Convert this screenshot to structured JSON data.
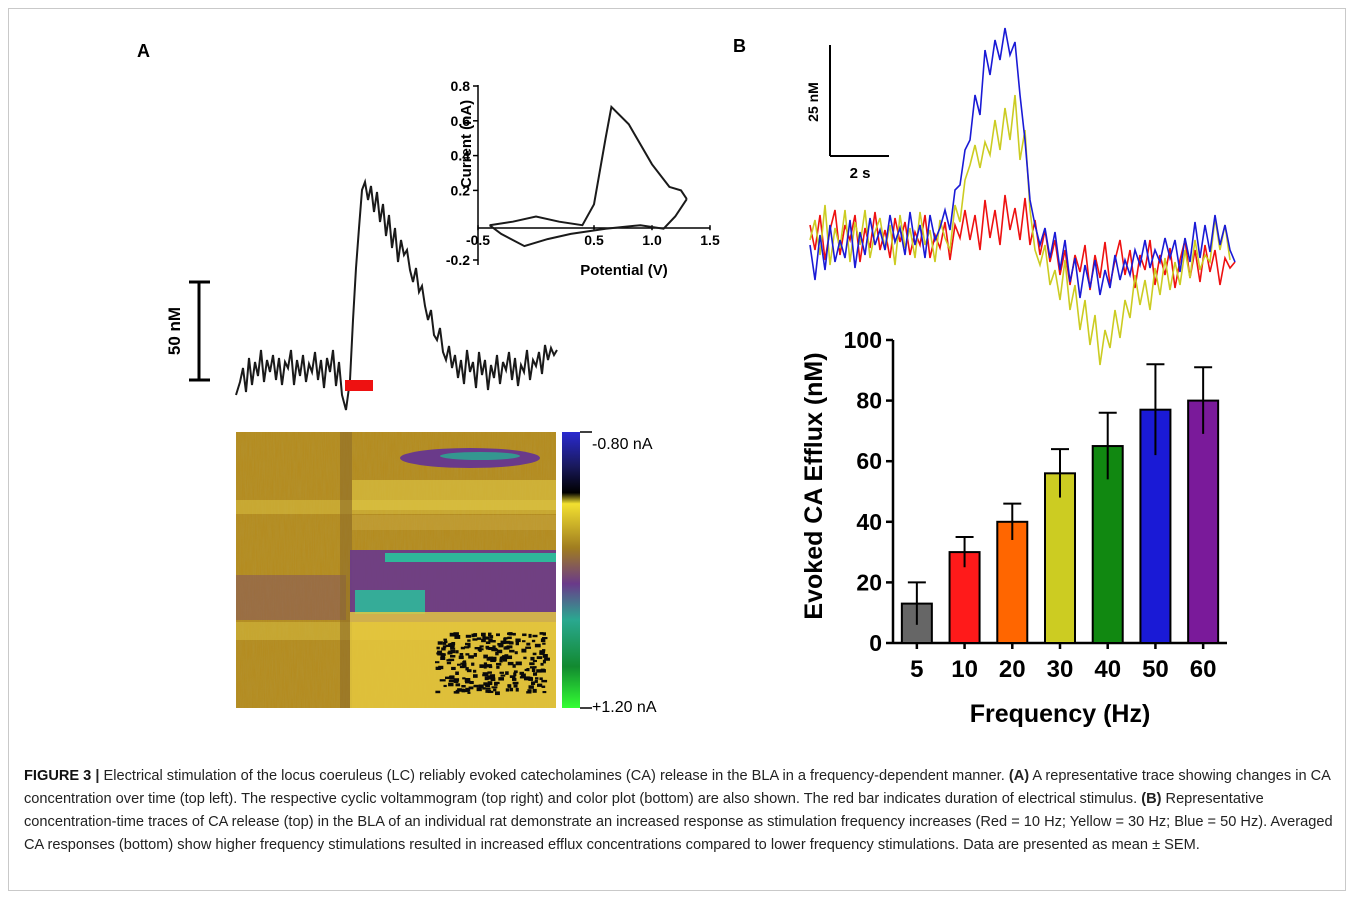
{
  "figure": {
    "panel_a_label": "A",
    "panel_b_label": "B",
    "scale_a_label": "50 nM",
    "scale_b_vertical_label": "25 nM",
    "scale_b_horizontal_label": "2 s",
    "colorbar_top_label": "-0.80 nA",
    "colorbar_bottom_label": "+1.20 nA"
  },
  "caption": {
    "figure_label": "FIGURE 3",
    "separator": "|",
    "text_1": "Electrical stimulation of the locus coeruleus (LC) reliably evoked catecholamines (CA) release in the BLA in a frequency-dependent manner.",
    "panel_a_ref": "(A)",
    "text_2": "A representative trace showing changes in CA concentration over time (top left). The respective cyclic voltammogram (top right) and color plot (bottom) are also shown. The red bar indicates duration of electrical stimulus.",
    "panel_b_ref": "(B)",
    "text_3": "Representative concentration-time traces of CA release (top) in the BLA of an individual rat demonstrate an increased response as stimulation frequency increases (Red = 10 Hz; Yellow = 30 Hz; Blue = 50 Hz). Averaged CA responses (bottom) show higher frequency stimulations resulted in increased efflux concentrations compared to lower frequency stimulations. Data are presented as mean ± SEM."
  },
  "chart_data": [
    {
      "type": "line",
      "name": "cyclic voltammogram inset",
      "xlabel": "Potential (V)",
      "ylabel": "Current (nA)",
      "xlim": [
        -0.5,
        1.5
      ],
      "ylim": [
        -0.2,
        0.8
      ],
      "xticks": [
        "-0.5",
        "0.5",
        "1.0",
        "1.5"
      ],
      "yticks": [
        "-0.2",
        "0.2",
        "0.4",
        "0.6",
        "0.8"
      ],
      "forward_sweep": [
        [
          -0.4,
          0.0
        ],
        [
          -0.2,
          0.02
        ],
        [
          0.0,
          0.05
        ],
        [
          0.2,
          0.02
        ],
        [
          0.4,
          0.0
        ],
        [
          0.5,
          0.12
        ],
        [
          0.6,
          0.5
        ],
        [
          0.65,
          0.68
        ],
        [
          0.8,
          0.58
        ],
        [
          1.0,
          0.35
        ],
        [
          1.15,
          0.22
        ],
        [
          1.25,
          0.2
        ],
        [
          1.3,
          0.15
        ]
      ],
      "reverse_sweep": [
        [
          1.3,
          0.15
        ],
        [
          1.2,
          0.05
        ],
        [
          1.1,
          -0.02
        ],
        [
          0.9,
          0.0
        ],
        [
          0.6,
          -0.02
        ],
        [
          0.3,
          -0.05
        ],
        [
          0.1,
          -0.08
        ],
        [
          -0.1,
          -0.12
        ],
        [
          -0.3,
          -0.05
        ],
        [
          -0.4,
          0.0
        ]
      ]
    },
    {
      "type": "bar",
      "xlabel": "Frequency (Hz)",
      "ylabel": "Evoked CA Efflux (nM)",
      "ylim": [
        0,
        100
      ],
      "yticks": [
        "0",
        "20",
        "40",
        "60",
        "80",
        "100"
      ],
      "categories": [
        "5",
        "10",
        "20",
        "30",
        "40",
        "50",
        "60"
      ],
      "values": [
        13,
        30,
        40,
        56,
        65,
        77,
        80
      ],
      "errors": [
        7,
        5,
        6,
        8,
        11,
        15,
        11
      ],
      "colors": [
        "#666666",
        "#ff1a1a",
        "#ff6600",
        "#cccc22",
        "#118811",
        "#1a1ad6",
        "#7a1a9a"
      ]
    }
  ]
}
